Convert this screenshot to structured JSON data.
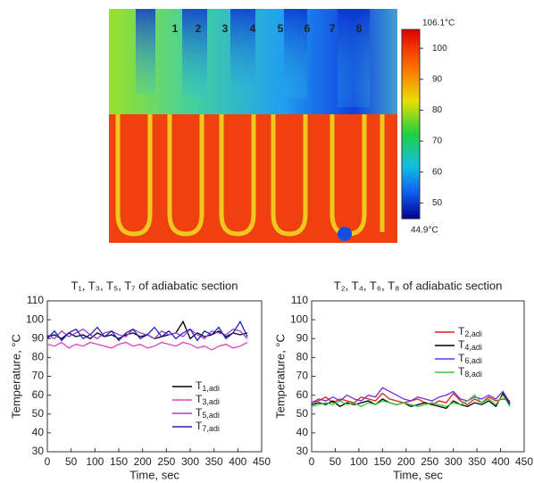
{
  "thermal_image": {
    "tube_labels": [
      "1",
      "2",
      "3",
      "4",
      "5",
      "6",
      "7",
      "8"
    ],
    "colorbar": {
      "max": {
        "value": 106.1,
        "label": "106.1°C"
      },
      "min": {
        "value": 44.9,
        "label": "44.9°C"
      },
      "ticks": [
        100,
        90,
        80,
        70,
        60,
        50
      ]
    }
  },
  "chart_data": [
    {
      "type": "line",
      "title": "T₁, T₃, T₅, T₇ of adiabatic section",
      "x_label": "Time, sec",
      "y_label": "Temperature, °C",
      "xlim": [
        0,
        450
      ],
      "xticks": [
        0,
        50,
        100,
        150,
        200,
        250,
        300,
        350,
        400,
        450
      ],
      "ylim": [
        30,
        110
      ],
      "yticks": [
        30,
        40,
        50,
        60,
        70,
        80,
        90,
        100,
        110
      ],
      "legend": "lower right",
      "x": [
        0,
        15,
        30,
        45,
        60,
        75,
        90,
        105,
        120,
        135,
        150,
        165,
        180,
        195,
        210,
        225,
        240,
        255,
        270,
        285,
        300,
        315,
        330,
        345,
        360,
        375,
        390,
        405,
        420
      ],
      "series": [
        {
          "name": "T1,adi",
          "color": "#000000",
          "values": [
            91,
            92,
            90,
            93,
            91,
            92,
            90,
            93,
            91,
            92,
            90,
            92,
            93,
            91,
            92,
            90,
            91,
            92,
            93,
            99,
            90,
            93,
            91,
            92,
            94,
            91,
            93,
            92,
            93
          ]
        },
        {
          "name": "T3,adi",
          "color": "#e040c0",
          "values": [
            87,
            86,
            88,
            85,
            87,
            86,
            88,
            87,
            86,
            85,
            87,
            88,
            86,
            87,
            85,
            86,
            88,
            87,
            86,
            88,
            87,
            85,
            86,
            84,
            86,
            87,
            85,
            86,
            88
          ]
        },
        {
          "name": "T5,adi",
          "color": "#a040d0",
          "values": [
            92,
            90,
            94,
            91,
            93,
            95,
            92,
            90,
            93,
            94,
            92,
            91,
            95,
            93,
            92,
            90,
            94,
            92,
            93,
            91,
            95,
            92,
            90,
            94,
            93,
            92,
            95,
            94,
            90
          ]
        },
        {
          "name": "T7,adi",
          "color": "#2020c0",
          "values": [
            90,
            94,
            89,
            93,
            95,
            90,
            92,
            96,
            91,
            94,
            89,
            93,
            95,
            90,
            92,
            96,
            91,
            94,
            90,
            93,
            95,
            89,
            94,
            92,
            96,
            90,
            93,
            99,
            91
          ]
        }
      ]
    },
    {
      "type": "line",
      "title": "T₂, T₄, T₆, T₈ of adiabatic section",
      "x_label": "Time, sec",
      "y_label": "Temperature, °C",
      "xlim": [
        0,
        450
      ],
      "xticks": [
        0,
        50,
        100,
        150,
        200,
        250,
        300,
        350,
        400,
        450
      ],
      "ylim": [
        30,
        110
      ],
      "yticks": [
        30,
        40,
        50,
        60,
        70,
        80,
        90,
        100,
        110
      ],
      "legend": "upper right",
      "x": [
        0,
        15,
        30,
        45,
        60,
        75,
        90,
        105,
        120,
        135,
        150,
        165,
        180,
        195,
        210,
        225,
        240,
        255,
        270,
        285,
        300,
        315,
        330,
        345,
        360,
        375,
        390,
        405,
        420
      ],
      "series": [
        {
          "name": "T2,adi",
          "color": "#e02020",
          "values": [
            56,
            57,
            59,
            56,
            58,
            57,
            56,
            59,
            58,
            57,
            61,
            58,
            57,
            56,
            57,
            58,
            56,
            55,
            57,
            56,
            61,
            57,
            55,
            58,
            56,
            59,
            57,
            58,
            57
          ]
        },
        {
          "name": "T4,adi",
          "color": "#000000",
          "values": [
            55,
            56,
            55,
            57,
            54,
            56,
            55,
            56,
            57,
            55,
            58,
            56,
            55,
            56,
            54,
            55,
            56,
            55,
            54,
            53,
            57,
            55,
            54,
            56,
            55,
            57,
            54,
            61,
            55
          ]
        },
        {
          "name": "T6,adi",
          "color": "#7030e0",
          "values": [
            56,
            58,
            57,
            59,
            57,
            60,
            58,
            57,
            60,
            59,
            64,
            62,
            60,
            58,
            57,
            59,
            58,
            57,
            59,
            60,
            62,
            58,
            57,
            59,
            58,
            60,
            58,
            62,
            56
          ]
        },
        {
          "name": "T8,adi",
          "color": "#30d030",
          "values": [
            54,
            55,
            56,
            55,
            57,
            55,
            56,
            54,
            56,
            55,
            57,
            56,
            55,
            56,
            55,
            54,
            55,
            56,
            55,
            54,
            56,
            55,
            57,
            60,
            56,
            58,
            55,
            60,
            54
          ]
        }
      ]
    }
  ]
}
